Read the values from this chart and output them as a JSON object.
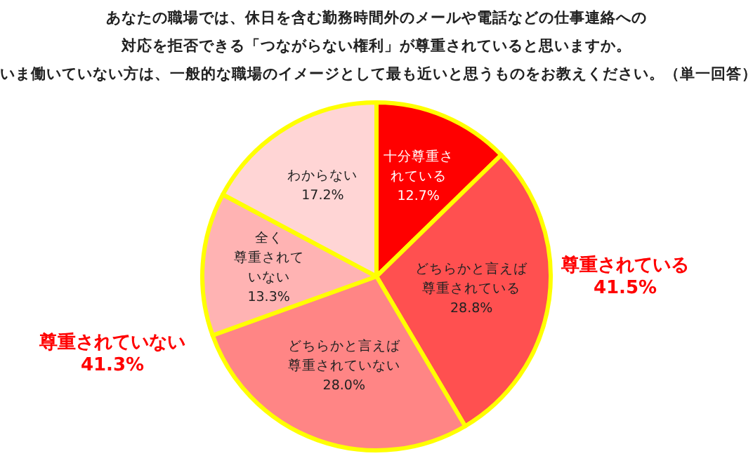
{
  "chart_data": {
    "type": "pie",
    "title": "あなたの職場では、休日を含む勤務時間外のメールや電話などの仕事連絡への",
    "subtitle": "対応を拒否できる「つながらない権利」が尊重されていると思いますか。",
    "annotations": [
      "いま働いていない方は、一般的な職場のイメージとして最も近いと思うものをお教えください。（単一回答）",
      "尊重されている",
      "41.5%",
      "尊重されていない",
      "41.3%"
    ],
    "categories": [
      "十分尊重されている",
      "どちらかと言えば尊重されている",
      "どちらかと言えば尊重されていない",
      "全く尊重されていない",
      "わからない"
    ],
    "values": [
      12.7,
      28.8,
      28.0,
      13.3,
      17.2
    ],
    "value_labels": [
      "12.7%",
      "28.8%",
      "28.0%",
      "13.3%",
      "17.2%"
    ],
    "colors": [
      "#ff0000",
      "#ff5050",
      "#ff8585",
      "#ffb3b3",
      "#ffd5d5"
    ],
    "legend": false
  }
}
